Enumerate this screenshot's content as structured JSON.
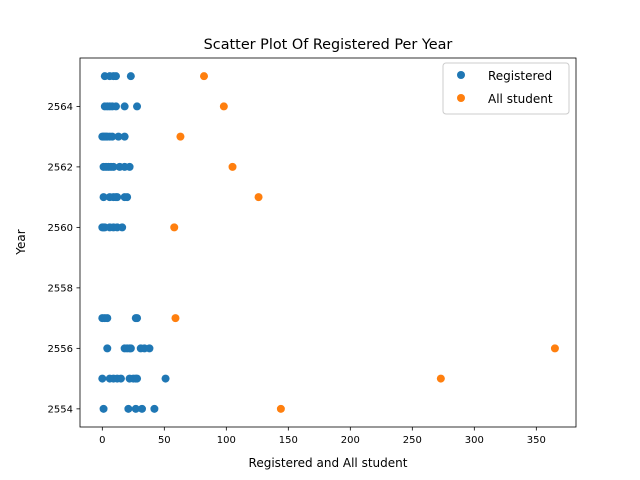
{
  "chart_data": {
    "type": "scatter",
    "title": "Scatter Plot Of Registered Per Year",
    "xlabel": "Registered and All student",
    "ylabel": "Year",
    "xlim": [
      -18,
      382
    ],
    "ylim": [
      2553.4,
      2565.6
    ],
    "xticks": [
      0,
      50,
      100,
      150,
      200,
      250,
      300,
      350
    ],
    "yticks": [
      2554,
      2556,
      2558,
      2560,
      2562,
      2564
    ],
    "grid": false,
    "legend": "top-right",
    "series": [
      {
        "name": "Registered",
        "color": "#1f77b4",
        "points": [
          {
            "x": 2,
            "y": 2565
          },
          {
            "x": 6,
            "y": 2565
          },
          {
            "x": 9,
            "y": 2565
          },
          {
            "x": 11,
            "y": 2565
          },
          {
            "x": 23,
            "y": 2565
          },
          {
            "x": 2,
            "y": 2564
          },
          {
            "x": 4,
            "y": 2564
          },
          {
            "x": 6,
            "y": 2564
          },
          {
            "x": 8,
            "y": 2564
          },
          {
            "x": 11,
            "y": 2564
          },
          {
            "x": 18,
            "y": 2564
          },
          {
            "x": 28,
            "y": 2564
          },
          {
            "x": 0,
            "y": 2563
          },
          {
            "x": 1,
            "y": 2563
          },
          {
            "x": 2,
            "y": 2563
          },
          {
            "x": 3,
            "y": 2563
          },
          {
            "x": 4,
            "y": 2563
          },
          {
            "x": 6,
            "y": 2563
          },
          {
            "x": 8,
            "y": 2563
          },
          {
            "x": 13,
            "y": 2563
          },
          {
            "x": 18,
            "y": 2563
          },
          {
            "x": 1,
            "y": 2562
          },
          {
            "x": 3,
            "y": 2562
          },
          {
            "x": 5,
            "y": 2562
          },
          {
            "x": 7,
            "y": 2562
          },
          {
            "x": 9,
            "y": 2562
          },
          {
            "x": 14,
            "y": 2562
          },
          {
            "x": 18,
            "y": 2562
          },
          {
            "x": 22,
            "y": 2562
          },
          {
            "x": 1,
            "y": 2561
          },
          {
            "x": 6,
            "y": 2561
          },
          {
            "x": 9,
            "y": 2561
          },
          {
            "x": 11,
            "y": 2561
          },
          {
            "x": 12,
            "y": 2561
          },
          {
            "x": 18,
            "y": 2561
          },
          {
            "x": 20,
            "y": 2561
          },
          {
            "x": 0,
            "y": 2560
          },
          {
            "x": 1,
            "y": 2560
          },
          {
            "x": 2,
            "y": 2560
          },
          {
            "x": 6,
            "y": 2560
          },
          {
            "x": 9,
            "y": 2560
          },
          {
            "x": 12,
            "y": 2560
          },
          {
            "x": 16,
            "y": 2560
          },
          {
            "x": 0,
            "y": 2557
          },
          {
            "x": 2,
            "y": 2557
          },
          {
            "x": 4,
            "y": 2557
          },
          {
            "x": 27,
            "y": 2557
          },
          {
            "x": 28,
            "y": 2557
          },
          {
            "x": 4,
            "y": 2556
          },
          {
            "x": 18,
            "y": 2556
          },
          {
            "x": 20,
            "y": 2556
          },
          {
            "x": 22,
            "y": 2556
          },
          {
            "x": 23,
            "y": 2556
          },
          {
            "x": 31,
            "y": 2556
          },
          {
            "x": 34,
            "y": 2556
          },
          {
            "x": 38,
            "y": 2556
          },
          {
            "x": 0,
            "y": 2555
          },
          {
            "x": 6,
            "y": 2555
          },
          {
            "x": 9,
            "y": 2555
          },
          {
            "x": 12,
            "y": 2555
          },
          {
            "x": 15,
            "y": 2555
          },
          {
            "x": 22,
            "y": 2555
          },
          {
            "x": 25,
            "y": 2555
          },
          {
            "x": 27,
            "y": 2555
          },
          {
            "x": 28,
            "y": 2555
          },
          {
            "x": 51,
            "y": 2555
          },
          {
            "x": 1,
            "y": 2554
          },
          {
            "x": 21,
            "y": 2554
          },
          {
            "x": 27,
            "y": 2554
          },
          {
            "x": 32,
            "y": 2554
          },
          {
            "x": 42,
            "y": 2554
          }
        ]
      },
      {
        "name": "All student",
        "color": "#ff7f0e",
        "points": [
          {
            "x": 82,
            "y": 2565
          },
          {
            "x": 98,
            "y": 2564
          },
          {
            "x": 63,
            "y": 2563
          },
          {
            "x": 105,
            "y": 2562
          },
          {
            "x": 126,
            "y": 2561
          },
          {
            "x": 58,
            "y": 2560
          },
          {
            "x": 59,
            "y": 2557
          },
          {
            "x": 365,
            "y": 2556
          },
          {
            "x": 273,
            "y": 2555
          },
          {
            "x": 144,
            "y": 2554
          }
        ]
      }
    ]
  }
}
